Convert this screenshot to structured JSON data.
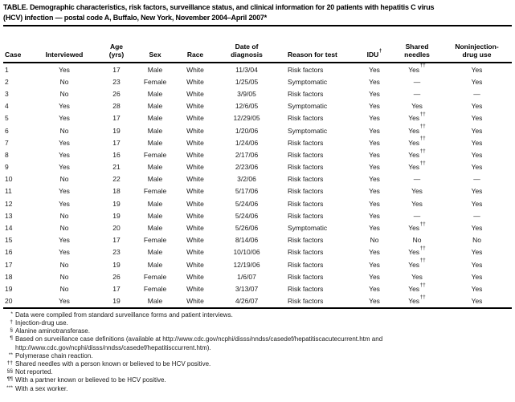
{
  "table": {
    "title_line1": "TABLE. Demographic characteristics, risk factors, surveillance status, and clinical information for 20 patients with hepatitis C virus",
    "title_line2": "(HCV) infection — postal code A, Buffalo, New York, November 2004–April 2007*",
    "columns": [
      [
        "Case"
      ],
      [
        "Interviewed"
      ],
      [
        "Age",
        "(yrs)"
      ],
      [
        "Sex"
      ],
      [
        "Race"
      ],
      [
        "Date of",
        "diagnosis"
      ],
      [
        "Reason for test"
      ],
      [
        "IDU†"
      ],
      [
        "Shared",
        "needles"
      ],
      [
        "Noninjection-",
        "drug use"
      ]
    ],
    "rows": [
      [
        "1",
        "Yes",
        "17",
        "Male",
        "White",
        "11/3/04",
        "Risk factors",
        "Yes",
        "Yes††",
        "Yes"
      ],
      [
        "2",
        "No",
        "23",
        "Female",
        "White",
        "1/25/05",
        "Symptomatic",
        "Yes",
        "—",
        "Yes"
      ],
      [
        "3",
        "No",
        "26",
        "Male",
        "White",
        "3/9/05",
        "Risk factors",
        "Yes",
        "—",
        "—"
      ],
      [
        "4",
        "Yes",
        "28",
        "Male",
        "White",
        "12/6/05",
        "Symptomatic",
        "Yes",
        "Yes",
        "Yes"
      ],
      [
        "5",
        "Yes",
        "17",
        "Male",
        "White",
        "12/29/05",
        "Risk factors",
        "Yes",
        "Yes††",
        "Yes"
      ],
      [
        "6",
        "No",
        "19",
        "Male",
        "White",
        "1/20/06",
        "Symptomatic",
        "Yes",
        "Yes††",
        "Yes"
      ],
      [
        "7",
        "Yes",
        "17",
        "Male",
        "White",
        "1/24/06",
        "Risk factors",
        "Yes",
        "Yes††",
        "Yes"
      ],
      [
        "8",
        "Yes",
        "16",
        "Female",
        "White",
        "2/17/06",
        "Risk factors",
        "Yes",
        "Yes††",
        "Yes"
      ],
      [
        "9",
        "Yes",
        "21",
        "Male",
        "White",
        "2/23/06",
        "Risk factors",
        "Yes",
        "Yes††",
        "Yes"
      ],
      [
        "10",
        "No",
        "22",
        "Male",
        "White",
        "3/2/06",
        "Risk factors",
        "Yes",
        "—",
        "—"
      ],
      [
        "11",
        "Yes",
        "18",
        "Female",
        "White",
        "5/17/06",
        "Risk factors",
        "Yes",
        "Yes",
        "Yes"
      ],
      [
        "12",
        "Yes",
        "19",
        "Male",
        "White",
        "5/24/06",
        "Risk factors",
        "Yes",
        "Yes",
        "Yes"
      ],
      [
        "13",
        "No",
        "19",
        "Male",
        "White",
        "5/24/06",
        "Risk factors",
        "Yes",
        "—",
        "—"
      ],
      [
        "14",
        "No",
        "20",
        "Male",
        "White",
        "5/26/06",
        "Symptomatic",
        "Yes",
        "Yes††",
        "Yes"
      ],
      [
        "15",
        "Yes",
        "17",
        "Female",
        "White",
        "8/14/06",
        "Risk factors",
        "No",
        "No",
        "No"
      ],
      [
        "16",
        "Yes",
        "23",
        "Male",
        "White",
        "10/10/06",
        "Risk factors",
        "Yes",
        "Yes††",
        "Yes"
      ],
      [
        "17",
        "No",
        "19",
        "Male",
        "White",
        "12/19/06",
        "Risk factors",
        "Yes",
        "Yes††",
        "Yes"
      ],
      [
        "18",
        "No",
        "26",
        "Female",
        "White",
        "1/6/07",
        "Risk factors",
        "Yes",
        "Yes",
        "Yes"
      ],
      [
        "19",
        "No",
        "17",
        "Female",
        "White",
        "3/13/07",
        "Risk factors",
        "Yes",
        "Yes††",
        "Yes"
      ],
      [
        "20",
        "Yes",
        "19",
        "Male",
        "White",
        "4/26/07",
        "Risk factors",
        "Yes",
        "Yes††",
        "Yes"
      ]
    ],
    "footnotes": [
      {
        "marker": "*",
        "text": "Data were compiled from standard surveillance forms and patient interviews."
      },
      {
        "marker": "†",
        "text": "Injection-drug use."
      },
      {
        "marker": "§",
        "text": "Alanine aminotransferase."
      },
      {
        "marker": "¶",
        "text": "Based on surveillance case definitions (available at http://www.cdc.gov/ncphi/disss/nndss/casedef/hepatitiscacutecurrent.htm and http://www.cdc.gov/ncphi/disss/nndss/casedef/hepatitisccurrent.htm)."
      },
      {
        "marker": "**",
        "text": "Polymerase chain reaction."
      },
      {
        "marker": "††",
        "text": "Shared needles with a person known or believed to be HCV positive."
      },
      {
        "marker": "§§",
        "text": "Not reported."
      },
      {
        "marker": "¶¶",
        "text": "With a partner known or believed to be HCV positive."
      },
      {
        "marker": "***",
        "text": "With a sex worker."
      }
    ]
  }
}
